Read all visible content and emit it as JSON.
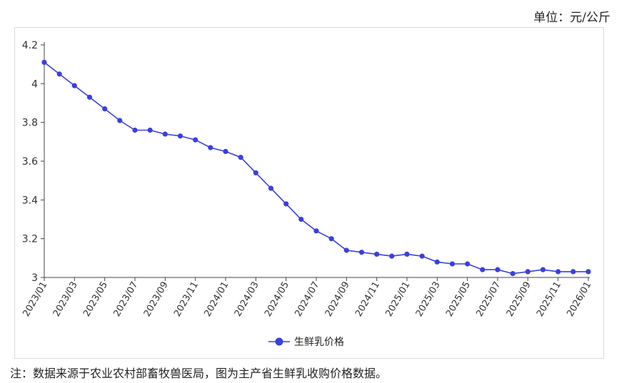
{
  "unit_label": "单位：元/公斤",
  "footnote": "注：数据来源于农业农村部畜牧兽医局，图为主产省生鲜乳收购价格数据。",
  "colors": {
    "series": "#3b3fe0",
    "axis": "#444444"
  },
  "chart_data": {
    "type": "line",
    "title": "",
    "xlabel": "",
    "ylabel": "",
    "ylim": [
      3,
      4.2
    ],
    "yticks": [
      "3",
      "3.2",
      "3.4",
      "3.6",
      "3.8",
      "4",
      "4.2"
    ],
    "grid": false,
    "legend_position": "bottom-center",
    "x": [
      "2023/01",
      "2023/02",
      "2023/03",
      "2023/04",
      "2023/05",
      "2023/06",
      "2023/07",
      "2023/08",
      "2023/09",
      "2023/10",
      "2023/11",
      "2023/12",
      "2024/01",
      "2024/02",
      "2024/03",
      "2024/04",
      "2024/05",
      "2024/06",
      "2024/07",
      "2024/08",
      "2024/09",
      "2024/10",
      "2024/11",
      "2024/12",
      "2025/01",
      "2025/02",
      "2025/03",
      "2025/04",
      "2025/05",
      "2025/06",
      "2025/07",
      "2025/08",
      "2025/09",
      "2025/10",
      "2025/11",
      "2025/12",
      "2026/01"
    ],
    "xtick_labels": [
      "2023/01",
      "2023/03",
      "2023/05",
      "2023/07",
      "2023/09",
      "2023/11",
      "2024/01",
      "2024/03",
      "2024/05",
      "2024/07",
      "2024/09",
      "2024/11",
      "2025/01",
      "2025/03",
      "2025/05",
      "2025/07",
      "2025/09",
      "2025/11",
      "2026/01"
    ],
    "series": [
      {
        "name": "生鲜乳价格",
        "values": [
          4.11,
          4.05,
          3.99,
          3.93,
          3.87,
          3.81,
          3.76,
          3.76,
          3.74,
          3.73,
          3.71,
          3.67,
          3.65,
          3.62,
          3.54,
          3.46,
          3.38,
          3.3,
          3.24,
          3.2,
          3.14,
          3.13,
          3.12,
          3.11,
          3.12,
          3.11,
          3.08,
          3.07,
          3.07,
          3.04,
          3.04,
          3.02,
          3.03,
          3.04,
          3.03,
          3.03,
          3.03
        ]
      }
    ]
  }
}
